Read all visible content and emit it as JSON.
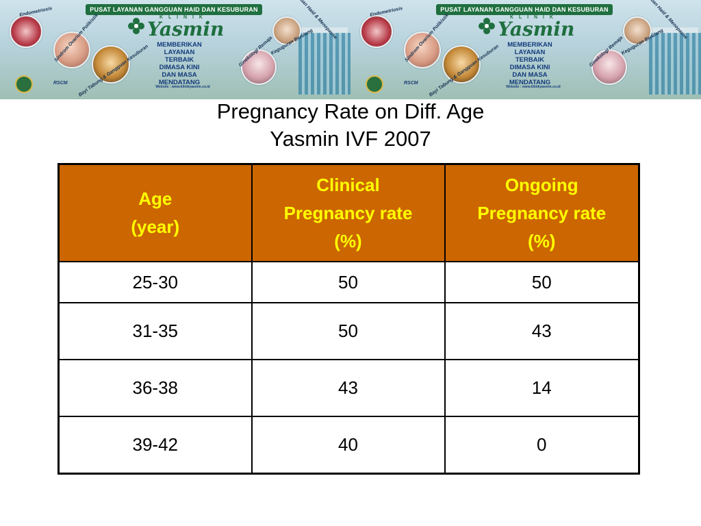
{
  "banner": {
    "strip_text": "PUSAT LAYANAN GANGGUAN HAID DAN KESUBURAN",
    "logo_klinik": "K L I N I K",
    "logo_word": "Yasmin",
    "tagline": [
      "MEMBERIKAN",
      "LAYANAN",
      "TERBAIK",
      "DIMASA KINI",
      "DAN MASA",
      "MENDATANG"
    ],
    "website": "Website : www.klinikyasmin.co.id",
    "circle_labels": [
      "Endometriosis",
      "Sindrom Ovarium Polikistik",
      "Bayi Tabung & Gangguan Kesuburan",
      "Gangguan Haid & Menopause",
      "Ginekologi Remaja",
      "Gangguan Haid & Menopause",
      "Keguguran Berulang"
    ],
    "rscm": "RSCM",
    "accent": "#1f6f3f"
  },
  "title": {
    "line1": "Pregnancy Rate on Diff. Age",
    "line2": "Yasmin IVF 2007"
  },
  "table": {
    "header_bg": "#cc6600",
    "header_color": "#ffff00",
    "headers": [
      {
        "line1": "Age",
        "line2": "(year)",
        "line3": ""
      },
      {
        "line1": "Clinical",
        "line2": "Pregnancy rate",
        "line3": "(%)"
      },
      {
        "line1": "Ongoing",
        "line2": "Pregnancy rate",
        "line3": "(%)"
      }
    ],
    "rows": [
      {
        "age": "25-30",
        "clinical": "50",
        "ongoing": "50"
      },
      {
        "age": "31-35",
        "clinical": "50",
        "ongoing": "43"
      },
      {
        "age": "36-38",
        "clinical": "43",
        "ongoing": "14"
      },
      {
        "age": "39-42",
        "clinical": "40",
        "ongoing": "0"
      }
    ]
  }
}
